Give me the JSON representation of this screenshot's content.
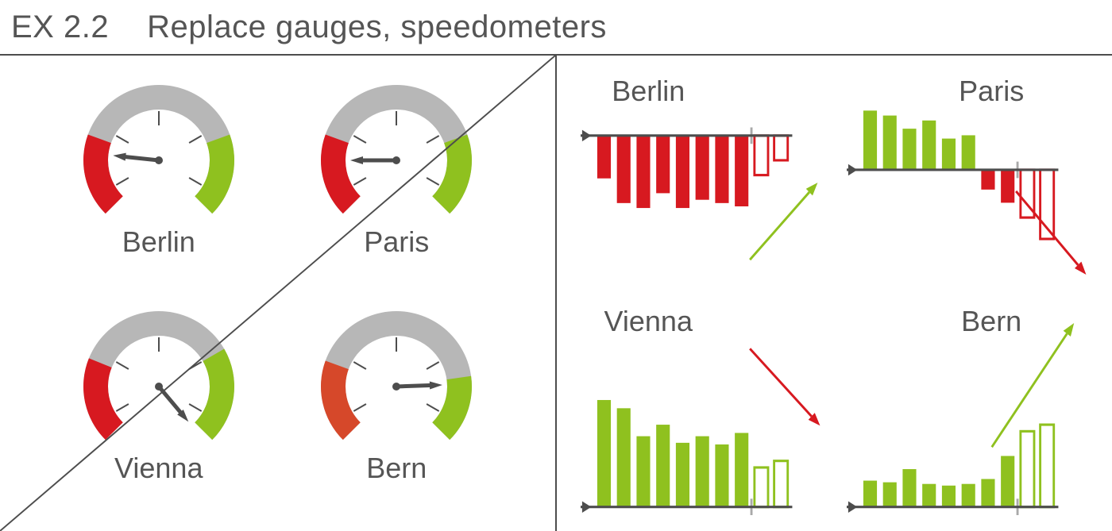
{
  "header": {
    "code": "EX 2.2",
    "title": "Replace gauges, speedometers"
  },
  "colors": {
    "text": "#555555",
    "axis": "#4d4d4d",
    "gaugeGrey": "#b7b7b7",
    "red": "#d71920",
    "redMuted": "#d6482a",
    "green": "#8fc11f",
    "needle": "#4d4d4d",
    "tickGrey": "#a9a9a9",
    "white": "#ffffff"
  },
  "gaugePanel": {
    "layout": "2x2",
    "gauges": [
      {
        "label": "Berlin",
        "redColor": "#d71920",
        "greenColor": "#8fc11f",
        "redStartDeg": 160,
        "greenEndDeg": 20,
        "needleAngleDeg": 174
      },
      {
        "label": "Paris",
        "redColor": "#d71920",
        "greenColor": "#8fc11f",
        "redStartDeg": 160,
        "greenEndDeg": 20,
        "needleAngleDeg": 180
      },
      {
        "label": "Vienna",
        "redColor": "#d71920",
        "greenColor": "#8fc11f",
        "redStartDeg": 158,
        "greenEndDeg": 30,
        "needleAngleDeg": -50
      },
      {
        "label": "Bern",
        "redColor": "#d6482a",
        "greenColor": "#8fc11f",
        "redStartDeg": 160,
        "greenEndDeg": 8,
        "needleAngleDeg": 2
      }
    ],
    "gaugeStyle": {
      "outerR": 95,
      "innerR": 64,
      "arcStartDeg": 225,
      "arcEndDeg": -45,
      "tickInner": 44,
      "tickOuter": 62,
      "tickAngles": [
        210,
        150,
        90,
        30,
        -30
      ]
    }
  },
  "barPanel": {
    "layout": "2x2",
    "barStyle": {
      "barCount": 10,
      "barWidth": 18,
      "barGap": 8,
      "tickHeight": 20
    },
    "charts": [
      {
        "label": "Berlin",
        "titleX": 0.28,
        "axisY": 0.3,
        "values": [
          -52,
          -82,
          -88,
          -70,
          -88,
          -78,
          -82,
          -86,
          -48,
          -30
        ],
        "outlineLast": 2,
        "barColor": "#d71920",
        "trend": {
          "start": [
            0.7,
            0.88
          ],
          "end": [
            0.98,
            0.52
          ],
          "color": "#8fc11f"
        }
      },
      {
        "label": "Paris",
        "titleX": 0.6,
        "axisY": 0.46,
        "values": [
          72,
          66,
          50,
          60,
          38,
          42,
          -24,
          -40,
          -58,
          -84
        ],
        "outlineLast": 2,
        "barColor": {
          "pos": "#8fc11f",
          "neg": "#d71920"
        },
        "trend": {
          "start": [
            0.7,
            0.56
          ],
          "end": [
            0.99,
            0.95
          ],
          "color": "#d71920"
        }
      },
      {
        "label": "Vienna",
        "titleX": 0.28,
        "axisY": 0.96,
        "values": [
          130,
          120,
          86,
          100,
          78,
          86,
          76,
          90,
          48,
          56
        ],
        "outlineLast": 2,
        "barColor": "#8fc11f",
        "trend": {
          "start": [
            0.7,
            0.22
          ],
          "end": [
            0.99,
            0.58
          ],
          "color": "#d71920"
        }
      },
      {
        "label": "Bern",
        "titleX": 0.6,
        "axisY": 0.96,
        "values": [
          32,
          30,
          46,
          28,
          26,
          28,
          34,
          62,
          92,
          100
        ],
        "outlineLast": 2,
        "barColor": "#8fc11f",
        "trend": {
          "start": [
            0.6,
            0.68
          ],
          "end": [
            0.94,
            0.1
          ],
          "color": "#8fc11f"
        }
      }
    ]
  }
}
